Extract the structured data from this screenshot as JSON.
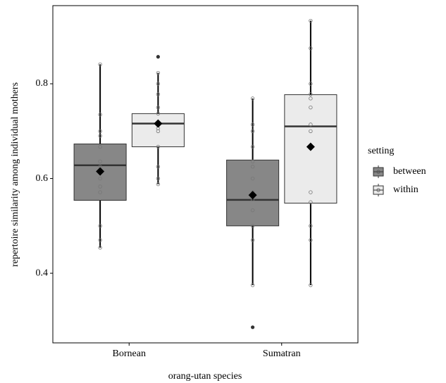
{
  "chart_data": {
    "type": "box",
    "x_label": "orang-utan species",
    "y_label": "repertoire similarity among individual mothers",
    "categories": [
      "Bornean",
      "Sumatran"
    ],
    "ylim": [
      0.253,
      0.965
    ],
    "yticks": [
      0.4,
      0.6,
      0.8
    ],
    "legend_title": "setting",
    "legend_position": "right",
    "series": [
      {
        "name": "between",
        "color": "#878787",
        "boxes": [
          {
            "whisker_low": 0.454,
            "q1": 0.554,
            "median": 0.628,
            "q3": 0.673,
            "whisker_high": 0.841,
            "mean": 0.615,
            "points": [
              0.841,
              0.735,
              0.7,
              0.69,
              0.667,
              0.667,
              0.636,
              0.625,
              0.615,
              0.6,
              0.583,
              0.571,
              0.5,
              0.47,
              0.454
            ],
            "outliers": []
          },
          {
            "whisker_low": 0.375,
            "q1": 0.5,
            "median": 0.555,
            "q3": 0.639,
            "whisker_high": 0.769,
            "mean": 0.565,
            "points": [
              0.769,
              0.714,
              0.7,
              0.667,
              0.636,
              0.625,
              0.6,
              0.571,
              0.556,
              0.533,
              0.5,
              0.47,
              0.375
            ],
            "outliers": [
              0.286
            ]
          }
        ]
      },
      {
        "name": "within",
        "color": "#ebebeb",
        "boxes": [
          {
            "whisker_low": 0.588,
            "q1": 0.667,
            "median": 0.716,
            "q3": 0.737,
            "whisker_high": 0.823,
            "mean": 0.716,
            "points": [
              0.823,
              0.8,
              0.778,
              0.75,
              0.737,
              0.714,
              0.706,
              0.7,
              0.667,
              0.625,
              0.6,
              0.588
            ],
            "outliers": [
              0.857
            ]
          },
          {
            "whisker_low": 0.375,
            "q1": 0.548,
            "median": 0.71,
            "q3": 0.777,
            "whisker_high": 0.933,
            "mean": 0.667,
            "points": [
              0.933,
              0.875,
              0.8,
              0.778,
              0.769,
              0.75,
              0.714,
              0.7,
              0.571,
              0.55,
              0.5,
              0.47,
              0.375
            ],
            "outliers": []
          }
        ]
      }
    ]
  }
}
